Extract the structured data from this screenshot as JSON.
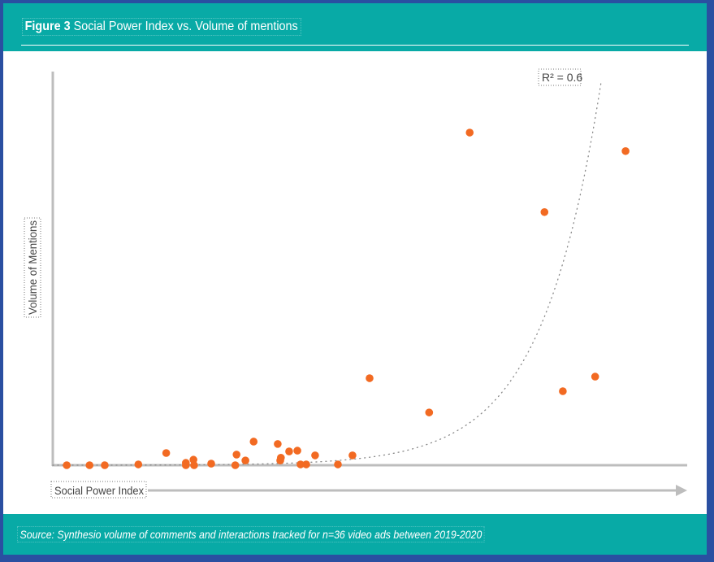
{
  "header": {
    "figure_label": "Figure 3",
    "title": "Social Power Index vs. Volume of mentions"
  },
  "footer": {
    "source": "Source: Synthesio volume of comments and interactions tracked for n=36 video ads between 2019-2020"
  },
  "chart_data": {
    "type": "scatter",
    "title": "Figure 3 Social Power Index vs. Volume of mentions",
    "xlabel": "Social Power Index",
    "ylabel": "Volume of Mentions",
    "xlim": [
      0,
      100
    ],
    "ylim": [
      0,
      100
    ],
    "scale_note": "no tick labels printed; values are relative positions on unlabelled axes",
    "grid": false,
    "point_color": "#f26a22",
    "trendline": {
      "type": "exponential",
      "style": "dotted",
      "color": "#888888",
      "label": "R² = 0.6"
    },
    "points": [
      [
        2.2,
        0
      ],
      [
        5.8,
        0
      ],
      [
        8.2,
        0
      ],
      [
        13.5,
        0.2
      ],
      [
        17.9,
        3.1
      ],
      [
        21.0,
        0.6
      ],
      [
        21.0,
        0
      ],
      [
        22.2,
        1.4
      ],
      [
        22.3,
        0
      ],
      [
        25.0,
        0.4
      ],
      [
        29.0,
        2.7
      ],
      [
        28.8,
        0
      ],
      [
        30.4,
        1.2
      ],
      [
        31.7,
        6.0
      ],
      [
        35.5,
        5.4
      ],
      [
        36.0,
        1.9
      ],
      [
        35.9,
        1.2
      ],
      [
        37.3,
        3.5
      ],
      [
        38.6,
        3.7
      ],
      [
        39.1,
        0.2
      ],
      [
        40.0,
        0.2
      ],
      [
        41.4,
        2.5
      ],
      [
        45.0,
        0.2
      ],
      [
        47.3,
        2.5
      ],
      [
        50.0,
        22.1
      ],
      [
        59.4,
        13.4
      ],
      [
        65.8,
        84.5
      ],
      [
        77.6,
        64.3
      ],
      [
        80.5,
        18.8
      ],
      [
        85.6,
        22.5
      ],
      [
        90.4,
        79.8
      ]
    ]
  }
}
